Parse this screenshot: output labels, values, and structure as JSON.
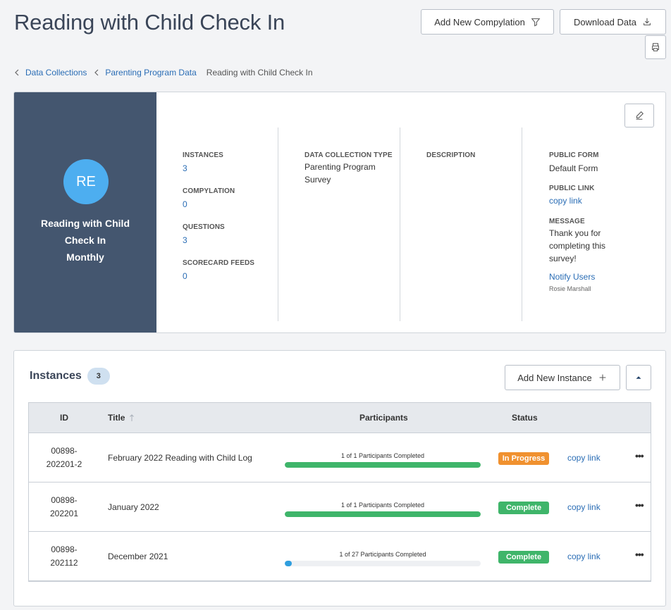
{
  "header": {
    "title": "Reading with Child Check In",
    "add_compylation_label": "Add New Compylation",
    "download_label": "Download Data"
  },
  "breadcrumb": {
    "items": [
      "Data Collections",
      "Parenting Program Data"
    ],
    "current": "Reading with Child Check In"
  },
  "summary": {
    "avatar_initials": "RE",
    "name_line1": "Reading with Child",
    "name_line2": "Check In",
    "frequency": "Monthly",
    "instances_label": "INSTANCES",
    "instances_value": "3",
    "compylation_label": "COMPYLATION",
    "compylation_value": "0",
    "questions_label": "QUESTIONS",
    "questions_value": "3",
    "scorecard_label": "SCORECARD FEEDS",
    "scorecard_value": "0",
    "type_label": "DATA COLLECTION TYPE",
    "type_line1": "Parenting Program",
    "type_line2": "Survey",
    "description_label": "DESCRIPTION",
    "public_form_label": "PUBLIC FORM",
    "public_form_value": "Default Form",
    "public_link_label": "PUBLIC LINK",
    "public_link_value": "copy link",
    "message_label": "MESSAGE",
    "message_line1": "Thank you for",
    "message_line2": "completing this",
    "message_line3": "survey!",
    "notify_label": "Notify Users",
    "notify_user": "Rosie Marshall"
  },
  "instances": {
    "heading": "Instances",
    "count": "3",
    "add_label": "Add New Instance",
    "columns": {
      "id": "ID",
      "title": "Title",
      "participants": "Participants",
      "status": "Status"
    },
    "rows": [
      {
        "id_line1": "00898-",
        "id_line2": "202201-2",
        "title": "February 2022 Reading with Child Log",
        "participants": "1 of 1 Participants Completed",
        "progress": 1.0,
        "status": "In Progress",
        "status_color": "#f0912f",
        "link": "copy link",
        "more": "•••"
      },
      {
        "id_line1": "00898-",
        "id_line2": "202201",
        "title": "January 2022",
        "participants": "1 of 1 Participants Completed",
        "progress": 1.0,
        "status": "Complete",
        "status_color": "#3fb56a",
        "link": "copy link",
        "more": "•••"
      },
      {
        "id_line1": "00898-",
        "id_line2": "202112",
        "title": "December 2021",
        "participants": "1 of 27 Participants Completed",
        "progress": 0.037,
        "status": "Complete",
        "status_color": "#3fb56a",
        "link": "copy link",
        "more": "•••"
      }
    ]
  },
  "colors": {
    "progress_full": "#3fb56a",
    "progress_partial": "#2f9ede",
    "sidebar": "#44566f",
    "avatar": "#4daef0"
  }
}
